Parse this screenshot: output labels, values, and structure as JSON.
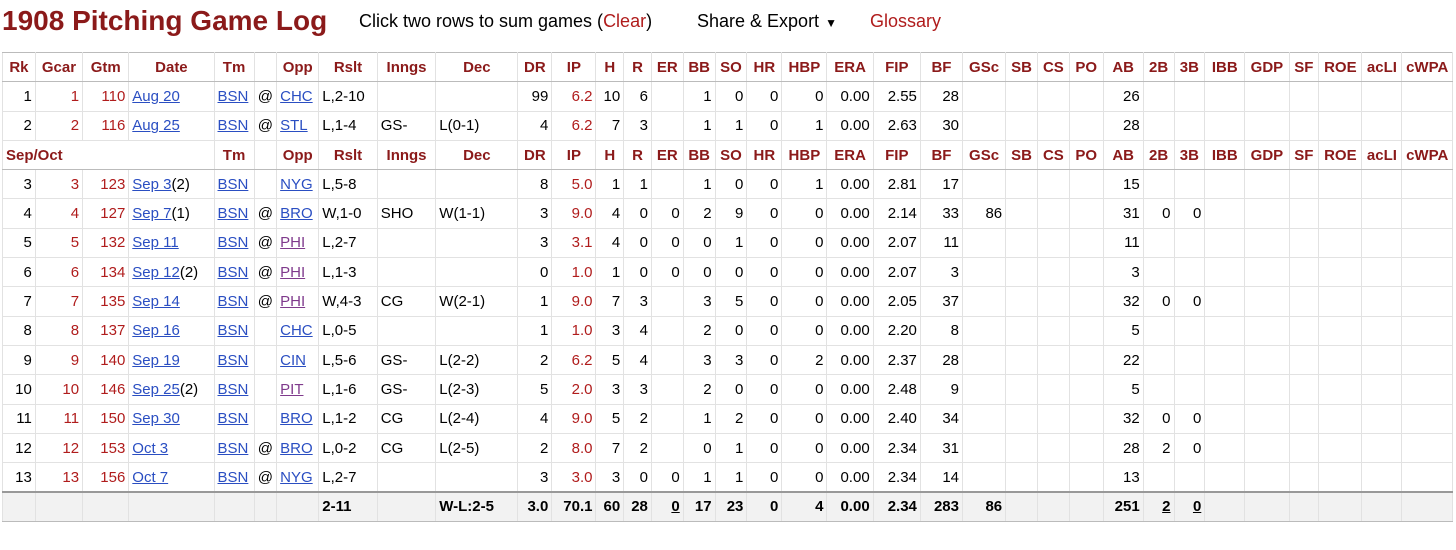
{
  "header": {
    "title": "1908 Pitching Game Log",
    "instruction": "Click two rows to sum games (",
    "clear": "Clear",
    "close_paren": ")",
    "share_export": "Share & Export",
    "glossary": "Glossary"
  },
  "columns": [
    "Rk",
    "Gcar",
    "Gtm",
    "Date",
    "Tm",
    "",
    "Opp",
    "Rslt",
    "Inngs",
    "Dec",
    "DR",
    "IP",
    "H",
    "R",
    "ER",
    "BB",
    "SO",
    "HR",
    "HBP",
    "ERA",
    "FIP",
    "BF",
    "GSc",
    "SB",
    "CS",
    "PO",
    "AB",
    "2B",
    "3B",
    "IBB",
    "GDP",
    "SF",
    "ROE",
    "acLI",
    "cWPA"
  ],
  "mid_header_label": "Sep/Oct",
  "rows": [
    {
      "rk": "1",
      "gcar": "1",
      "gtm": "110",
      "date": "Aug 20",
      "date_suffix": "",
      "tm": "BSN",
      "at": "@",
      "opp": "CHC",
      "opp_visited": false,
      "rslt": "L,2-10",
      "inngs": "",
      "dec": "",
      "dr": "99",
      "ip": "6.2",
      "h": "10",
      "r": "6",
      "er": "",
      "bb": "1",
      "so": "0",
      "hr": "0",
      "hbp": "0",
      "era": "0.00",
      "fip": "2.55",
      "bf": "28",
      "gsc": "",
      "sb": "",
      "cs": "",
      "po": "",
      "ab": "26",
      "b2": "",
      "b3": ""
    },
    {
      "rk": "2",
      "gcar": "2",
      "gtm": "116",
      "date": "Aug 25",
      "date_suffix": "",
      "tm": "BSN",
      "at": "@",
      "opp": "STL",
      "opp_visited": false,
      "rslt": "L,1-4",
      "inngs": "GS-",
      "dec": "L(0-1)",
      "dr": "4",
      "ip": "6.2",
      "h": "7",
      "r": "3",
      "er": "",
      "bb": "1",
      "so": "1",
      "hr": "0",
      "hbp": "1",
      "era": "0.00",
      "fip": "2.63",
      "bf": "30",
      "gsc": "",
      "sb": "",
      "cs": "",
      "po": "",
      "ab": "28",
      "b2": "",
      "b3": ""
    },
    {
      "rk": "3",
      "gcar": "3",
      "gtm": "123",
      "date": "Sep 3",
      "date_suffix": "(2)",
      "tm": "BSN",
      "at": "",
      "opp": "NYG",
      "opp_visited": false,
      "rslt": "L,5-8",
      "inngs": "",
      "dec": "",
      "dr": "8",
      "ip": "5.0",
      "h": "1",
      "r": "1",
      "er": "",
      "bb": "1",
      "so": "0",
      "hr": "0",
      "hbp": "1",
      "era": "0.00",
      "fip": "2.81",
      "bf": "17",
      "gsc": "",
      "sb": "",
      "cs": "",
      "po": "",
      "ab": "15",
      "b2": "",
      "b3": ""
    },
    {
      "rk": "4",
      "gcar": "4",
      "gtm": "127",
      "date": "Sep 7",
      "date_suffix": "(1)",
      "tm": "BSN",
      "at": "@",
      "opp": "BRO",
      "opp_visited": false,
      "rslt": "W,1-0",
      "inngs": "SHO",
      "dec": "W(1-1)",
      "dr": "3",
      "ip": "9.0",
      "h": "4",
      "r": "0",
      "er": "0",
      "bb": "2",
      "so": "9",
      "hr": "0",
      "hbp": "0",
      "era": "0.00",
      "fip": "2.14",
      "bf": "33",
      "gsc": "86",
      "sb": "",
      "cs": "",
      "po": "",
      "ab": "31",
      "b2": "0",
      "b3": "0"
    },
    {
      "rk": "5",
      "gcar": "5",
      "gtm": "132",
      "date": "Sep 11",
      "date_suffix": "",
      "tm": "BSN",
      "at": "@",
      "opp": "PHI",
      "opp_visited": true,
      "rslt": "L,2-7",
      "inngs": "",
      "dec": "",
      "dr": "3",
      "ip": "3.1",
      "h": "4",
      "r": "0",
      "er": "0",
      "bb": "0",
      "so": "1",
      "hr": "0",
      "hbp": "0",
      "era": "0.00",
      "fip": "2.07",
      "bf": "11",
      "gsc": "",
      "sb": "",
      "cs": "",
      "po": "",
      "ab": "11",
      "b2": "",
      "b3": ""
    },
    {
      "rk": "6",
      "gcar": "6",
      "gtm": "134",
      "date": "Sep 12",
      "date_suffix": "(2)",
      "tm": "BSN",
      "at": "@",
      "opp": "PHI",
      "opp_visited": true,
      "rslt": "L,1-3",
      "inngs": "",
      "dec": "",
      "dr": "0",
      "ip": "1.0",
      "h": "1",
      "r": "0",
      "er": "0",
      "bb": "0",
      "so": "0",
      "hr": "0",
      "hbp": "0",
      "era": "0.00",
      "fip": "2.07",
      "bf": "3",
      "gsc": "",
      "sb": "",
      "cs": "",
      "po": "",
      "ab": "3",
      "b2": "",
      "b3": ""
    },
    {
      "rk": "7",
      "gcar": "7",
      "gtm": "135",
      "date": "Sep 14",
      "date_suffix": "",
      "tm": "BSN",
      "at": "@",
      "opp": "PHI",
      "opp_visited": true,
      "rslt": "W,4-3",
      "inngs": "CG",
      "dec": "W(2-1)",
      "dr": "1",
      "ip": "9.0",
      "h": "7",
      "r": "3",
      "er": "",
      "bb": "3",
      "so": "5",
      "hr": "0",
      "hbp": "0",
      "era": "0.00",
      "fip": "2.05",
      "bf": "37",
      "gsc": "",
      "sb": "",
      "cs": "",
      "po": "",
      "ab": "32",
      "b2": "0",
      "b3": "0"
    },
    {
      "rk": "8",
      "gcar": "8",
      "gtm": "137",
      "date": "Sep 16",
      "date_suffix": "",
      "tm": "BSN",
      "at": "",
      "opp": "CHC",
      "opp_visited": false,
      "rslt": "L,0-5",
      "inngs": "",
      "dec": "",
      "dr": "1",
      "ip": "1.0",
      "h": "3",
      "r": "4",
      "er": "",
      "bb": "2",
      "so": "0",
      "hr": "0",
      "hbp": "0",
      "era": "0.00",
      "fip": "2.20",
      "bf": "8",
      "gsc": "",
      "sb": "",
      "cs": "",
      "po": "",
      "ab": "5",
      "b2": "",
      "b3": ""
    },
    {
      "rk": "9",
      "gcar": "9",
      "gtm": "140",
      "date": "Sep 19",
      "date_suffix": "",
      "tm": "BSN",
      "at": "",
      "opp": "CIN",
      "opp_visited": false,
      "rslt": "L,5-6",
      "inngs": "GS-",
      "dec": "L(2-2)",
      "dr": "2",
      "ip": "6.2",
      "h": "5",
      "r": "4",
      "er": "",
      "bb": "3",
      "so": "3",
      "hr": "0",
      "hbp": "2",
      "era": "0.00",
      "fip": "2.37",
      "bf": "28",
      "gsc": "",
      "sb": "",
      "cs": "",
      "po": "",
      "ab": "22",
      "b2": "",
      "b3": ""
    },
    {
      "rk": "10",
      "gcar": "10",
      "gtm": "146",
      "date": "Sep 25",
      "date_suffix": "(2)",
      "tm": "BSN",
      "at": "",
      "opp": "PIT",
      "opp_visited": true,
      "rslt": "L,1-6",
      "inngs": "GS-",
      "dec": "L(2-3)",
      "dr": "5",
      "ip": "2.0",
      "h": "3",
      "r": "3",
      "er": "",
      "bb": "2",
      "so": "0",
      "hr": "0",
      "hbp": "0",
      "era": "0.00",
      "fip": "2.48",
      "bf": "9",
      "gsc": "",
      "sb": "",
      "cs": "",
      "po": "",
      "ab": "5",
      "b2": "",
      "b3": ""
    },
    {
      "rk": "11",
      "gcar": "11",
      "gtm": "150",
      "date": "Sep 30",
      "date_suffix": "",
      "tm": "BSN",
      "at": "",
      "opp": "BRO",
      "opp_visited": false,
      "rslt": "L,1-2",
      "inngs": "CG",
      "dec": "L(2-4)",
      "dr": "4",
      "ip": "9.0",
      "h": "5",
      "r": "2",
      "er": "",
      "bb": "1",
      "so": "2",
      "hr": "0",
      "hbp": "0",
      "era": "0.00",
      "fip": "2.40",
      "bf": "34",
      "gsc": "",
      "sb": "",
      "cs": "",
      "po": "",
      "ab": "32",
      "b2": "0",
      "b3": "0"
    },
    {
      "rk": "12",
      "gcar": "12",
      "gtm": "153",
      "date": "Oct 3",
      "date_suffix": "",
      "tm": "BSN",
      "at": "@",
      "opp": "BRO",
      "opp_visited": false,
      "rslt": "L,0-2",
      "inngs": "CG",
      "dec": "L(2-5)",
      "dr": "2",
      "ip": "8.0",
      "h": "7",
      "r": "2",
      "er": "",
      "bb": "0",
      "so": "1",
      "hr": "0",
      "hbp": "0",
      "era": "0.00",
      "fip": "2.34",
      "bf": "31",
      "gsc": "",
      "sb": "",
      "cs": "",
      "po": "",
      "ab": "28",
      "b2": "2",
      "b3": "0"
    },
    {
      "rk": "13",
      "gcar": "13",
      "gtm": "156",
      "date": "Oct 7",
      "date_suffix": "",
      "tm": "BSN",
      "at": "@",
      "opp": "NYG",
      "opp_visited": false,
      "rslt": "L,2-7",
      "inngs": "",
      "dec": "",
      "dr": "3",
      "ip": "3.0",
      "h": "3",
      "r": "0",
      "er": "0",
      "bb": "1",
      "so": "1",
      "hr": "0",
      "hbp": "0",
      "era": "0.00",
      "fip": "2.34",
      "bf": "14",
      "gsc": "",
      "sb": "",
      "cs": "",
      "po": "",
      "ab": "13",
      "b2": "",
      "b3": ""
    }
  ],
  "totals": {
    "rslt": "2-11",
    "dec": "W-L:2-5",
    "dr": "3.0",
    "ip": "70.1",
    "h": "60",
    "r": "28",
    "er": "0",
    "bb": "17",
    "so": "23",
    "hr": "0",
    "hbp": "4",
    "era": "0.00",
    "fip": "2.34",
    "bf": "283",
    "gsc": "86",
    "ab": "251",
    "b2": "2",
    "b3": "0"
  },
  "colors": {
    "title": "#8b1a1a",
    "header_text": "#8b1a1a",
    "rk_red": "#b01c1c",
    "link": "#2a4ec2",
    "visited_link": "#7f3a8c",
    "totals_bg": "#f2f2f2"
  }
}
